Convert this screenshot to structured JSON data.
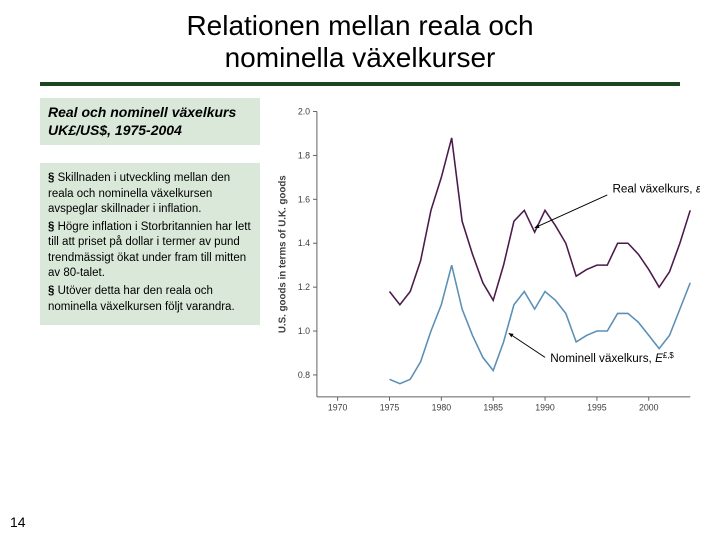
{
  "title_line1": "Relationen mellan reala och",
  "title_line2": "nominella växelkurser",
  "subtitle": "Real och nominell växelkurs UK£/US$, 1975-2004",
  "bullets": [
    "Skillnaden i utveckling mellan den reala och nominella växelkursen avspeglar skillnader i inflation.",
    "Högre inflation i Storbritannien har lett till att priset på dollar i termer av pund trendmässigt ökat under fram till mitten av 80-talet.",
    "Utöver detta har den reala och nominella växelkursen följt varandra."
  ],
  "slide_number": "14",
  "chart": {
    "type": "line",
    "background_color": "#ffffff",
    "axis_color": "#606060",
    "tick_font_size": 9,
    "y_label": "U.S. goods in terms of U.K. goods",
    "y_label_fontsize": 10,
    "x_ticks": [
      1970,
      1975,
      1980,
      1985,
      1990,
      1995,
      2000
    ],
    "xlim": [
      1968,
      2004
    ],
    "y_ticks": [
      0.8,
      1.0,
      1.2,
      1.4,
      1.6,
      1.8,
      2.0
    ],
    "ylim": [
      0.7,
      2.0
    ],
    "years": [
      1975,
      1976,
      1977,
      1978,
      1979,
      1980,
      1981,
      1982,
      1983,
      1984,
      1985,
      1986,
      1987,
      1988,
      1989,
      1990,
      1991,
      1992,
      1993,
      1994,
      1995,
      1996,
      1997,
      1998,
      1999,
      2000,
      2001,
      2002,
      2003,
      2004
    ],
    "series": {
      "real": {
        "label": "Real växelkurs,",
        "symbol": "ε",
        "sup": "£,$",
        "color": "#4b1a4b",
        "line_width": 1.6,
        "values": [
          1.18,
          1.12,
          1.18,
          1.32,
          1.55,
          1.7,
          1.88,
          1.5,
          1.35,
          1.22,
          1.14,
          1.3,
          1.5,
          1.55,
          1.45,
          1.55,
          1.48,
          1.4,
          1.25,
          1.28,
          1.3,
          1.3,
          1.4,
          1.4,
          1.35,
          1.28,
          1.2,
          1.27,
          1.4,
          1.55
        ]
      },
      "nominal": {
        "label": "Nominell växelkurs,",
        "symbol": "E",
        "sup": "£,$",
        "color": "#5b8fb5",
        "line_width": 1.6,
        "values": [
          0.78,
          0.76,
          0.78,
          0.86,
          1.0,
          1.12,
          1.3,
          1.1,
          0.98,
          0.88,
          0.82,
          0.95,
          1.12,
          1.18,
          1.1,
          1.18,
          1.14,
          1.08,
          0.95,
          0.98,
          1.0,
          1.0,
          1.08,
          1.08,
          1.04,
          0.98,
          0.92,
          0.98,
          1.1,
          1.22
        ]
      }
    },
    "annotations": {
      "real": {
        "arrow_from": [
          1996,
          1.62
        ],
        "arrow_to": [
          1989,
          1.47
        ],
        "text_at": [
          1996.5,
          1.63
        ]
      },
      "nominal": {
        "arrow_from": [
          1990,
          0.88
        ],
        "arrow_to": [
          1986.5,
          0.99
        ],
        "text_at": [
          1990.5,
          0.86
        ]
      }
    }
  }
}
